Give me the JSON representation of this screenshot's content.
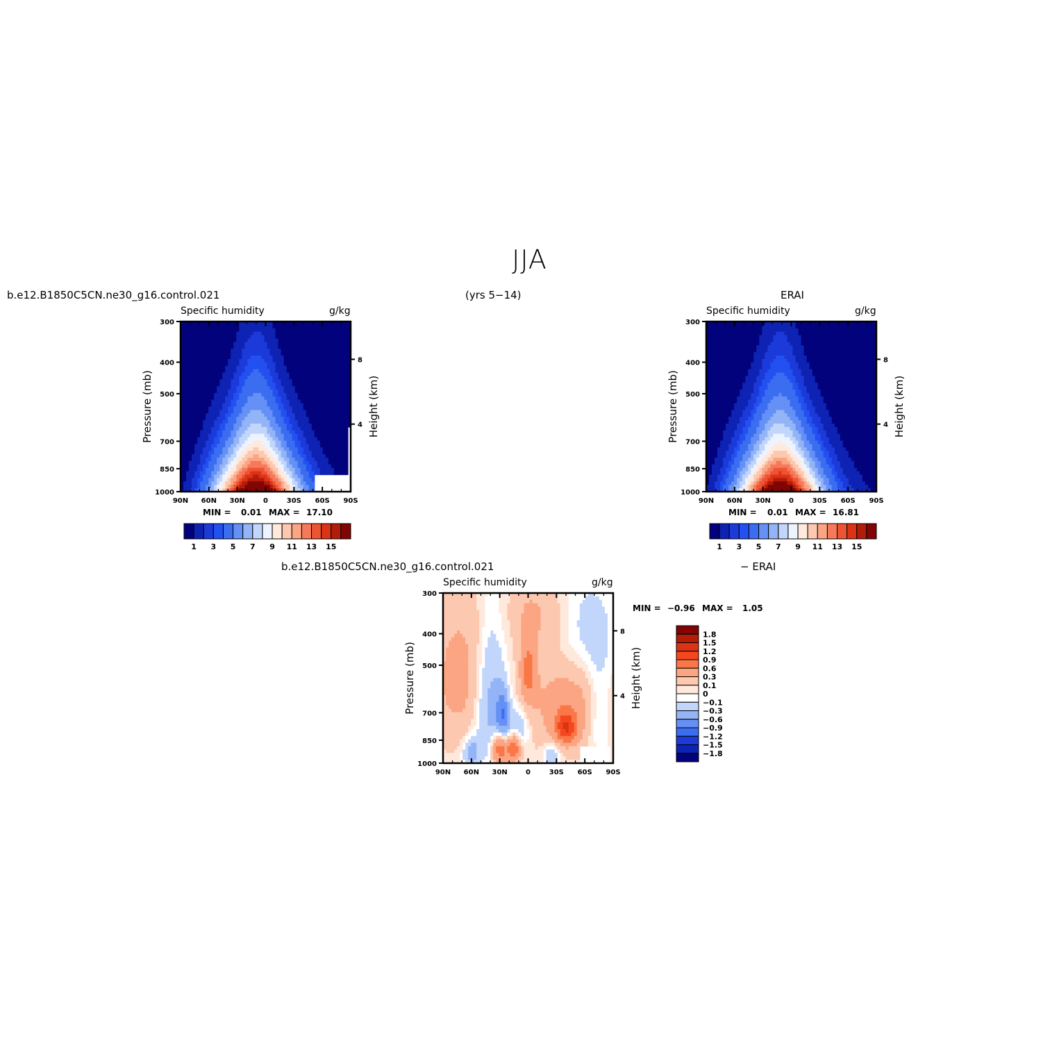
{
  "title": "JJA",
  "header": {
    "case_name": "b.e12.B1850C5CN.ne30_g16.control.021",
    "years": "(yrs 5−14)",
    "obs_name": "ERAI",
    "diff_case_name": "b.e12.B1850C5CN.ne30_g16.control.021",
    "diff_suffix": "− ERAI"
  },
  "chart_data": [
    {
      "type": "heatmap",
      "panel": "model",
      "left_title": "Specific humidity",
      "right_title": "g/kg",
      "ylabel": "Pressure (mb)",
      "y2label": "Height (km)",
      "x_ticks": [
        "90N",
        "60N",
        "30N",
        "0",
        "30S",
        "60S",
        "90S"
      ],
      "y_ticks": [
        "300",
        "400",
        "500",
        "700",
        "850",
        "1000"
      ],
      "y2_ticks": [
        "8",
        "4"
      ],
      "xlim": [
        90,
        -90
      ],
      "ylim": [
        1000,
        300
      ],
      "min_label": "MIN =",
      "min_value": "0.01",
      "max_label": "MAX =",
      "max_value": "17.10",
      "peak_lat": 10,
      "peak_value": 17.1,
      "colorbar_labels": [
        "1",
        "3",
        "5",
        "7",
        "9",
        "11",
        "13",
        "15"
      ],
      "colorbar_colors": [
        "#03027d",
        "#0e23b4",
        "#1b3ad9",
        "#2350f0",
        "#3a6df0",
        "#6590f5",
        "#93b4f7",
        "#c2d6fb",
        "#eef4ff",
        "#ffe9dc",
        "#fcc8b0",
        "#fba583",
        "#f5795a",
        "#ec5433",
        "#dc3316",
        "#b41c0a",
        "#810504"
      ]
    },
    {
      "type": "heatmap",
      "panel": "obs",
      "left_title": "Specific humidity",
      "right_title": "g/kg",
      "ylabel": "Pressure (mb)",
      "y2label": "Height (km)",
      "x_ticks": [
        "90N",
        "60N",
        "30N",
        "0",
        "30S",
        "60S",
        "90S"
      ],
      "y_ticks": [
        "300",
        "400",
        "500",
        "700",
        "850",
        "1000"
      ],
      "y2_ticks": [
        "8",
        "4"
      ],
      "xlim": [
        90,
        -90
      ],
      "ylim": [
        1000,
        300
      ],
      "min_label": "MIN =",
      "min_value": "0.01",
      "max_label": "MAX =",
      "max_value": "16.81",
      "peak_lat": 12,
      "peak_value": 16.8,
      "colorbar_labels": [
        "1",
        "3",
        "5",
        "7",
        "9",
        "11",
        "13",
        "15"
      ],
      "colorbar_colors": [
        "#03027d",
        "#0e23b4",
        "#1b3ad9",
        "#2350f0",
        "#3a6df0",
        "#6590f5",
        "#93b4f7",
        "#c2d6fb",
        "#eef4ff",
        "#ffe9dc",
        "#fcc8b0",
        "#fba583",
        "#f5795a",
        "#ec5433",
        "#dc3316",
        "#b41c0a",
        "#810504"
      ]
    },
    {
      "type": "heatmap",
      "panel": "difference",
      "left_title": "Specific humidity",
      "right_title": "g/kg",
      "ylabel": "Pressure (mb)",
      "y2label": "Height (km)",
      "x_ticks": [
        "90N",
        "60N",
        "30N",
        "0",
        "30S",
        "60S",
        "90S"
      ],
      "y_ticks": [
        "300",
        "400",
        "500",
        "700",
        "850",
        "1000"
      ],
      "y2_ticks": [
        "8",
        "4"
      ],
      "xlim": [
        90,
        -90
      ],
      "ylim": [
        1000,
        300
      ],
      "min_label": "MIN =",
      "min_value": "−0.96",
      "max_label": "MAX =",
      "max_value": "1.05",
      "colorbar_labels": [
        "1.8",
        "1.5",
        "1.2",
        "0.9",
        "0.6",
        "0.3",
        "0.1",
        "0",
        "−0.1",
        "−0.3",
        "−0.6",
        "−0.9",
        "−1.2",
        "−1.5",
        "−1.8"
      ],
      "colorbar_colors": [
        "#810504",
        "#b41c0a",
        "#dc3316",
        "#f5471e",
        "#fa7747",
        "#fba583",
        "#fcc8b0",
        "#ffe9dc",
        "#ffffff",
        "#c2d6fb",
        "#93b4f7",
        "#6590f5",
        "#3a6df0",
        "#1b3ad9",
        "#0e23b4",
        "#03027d"
      ]
    }
  ]
}
